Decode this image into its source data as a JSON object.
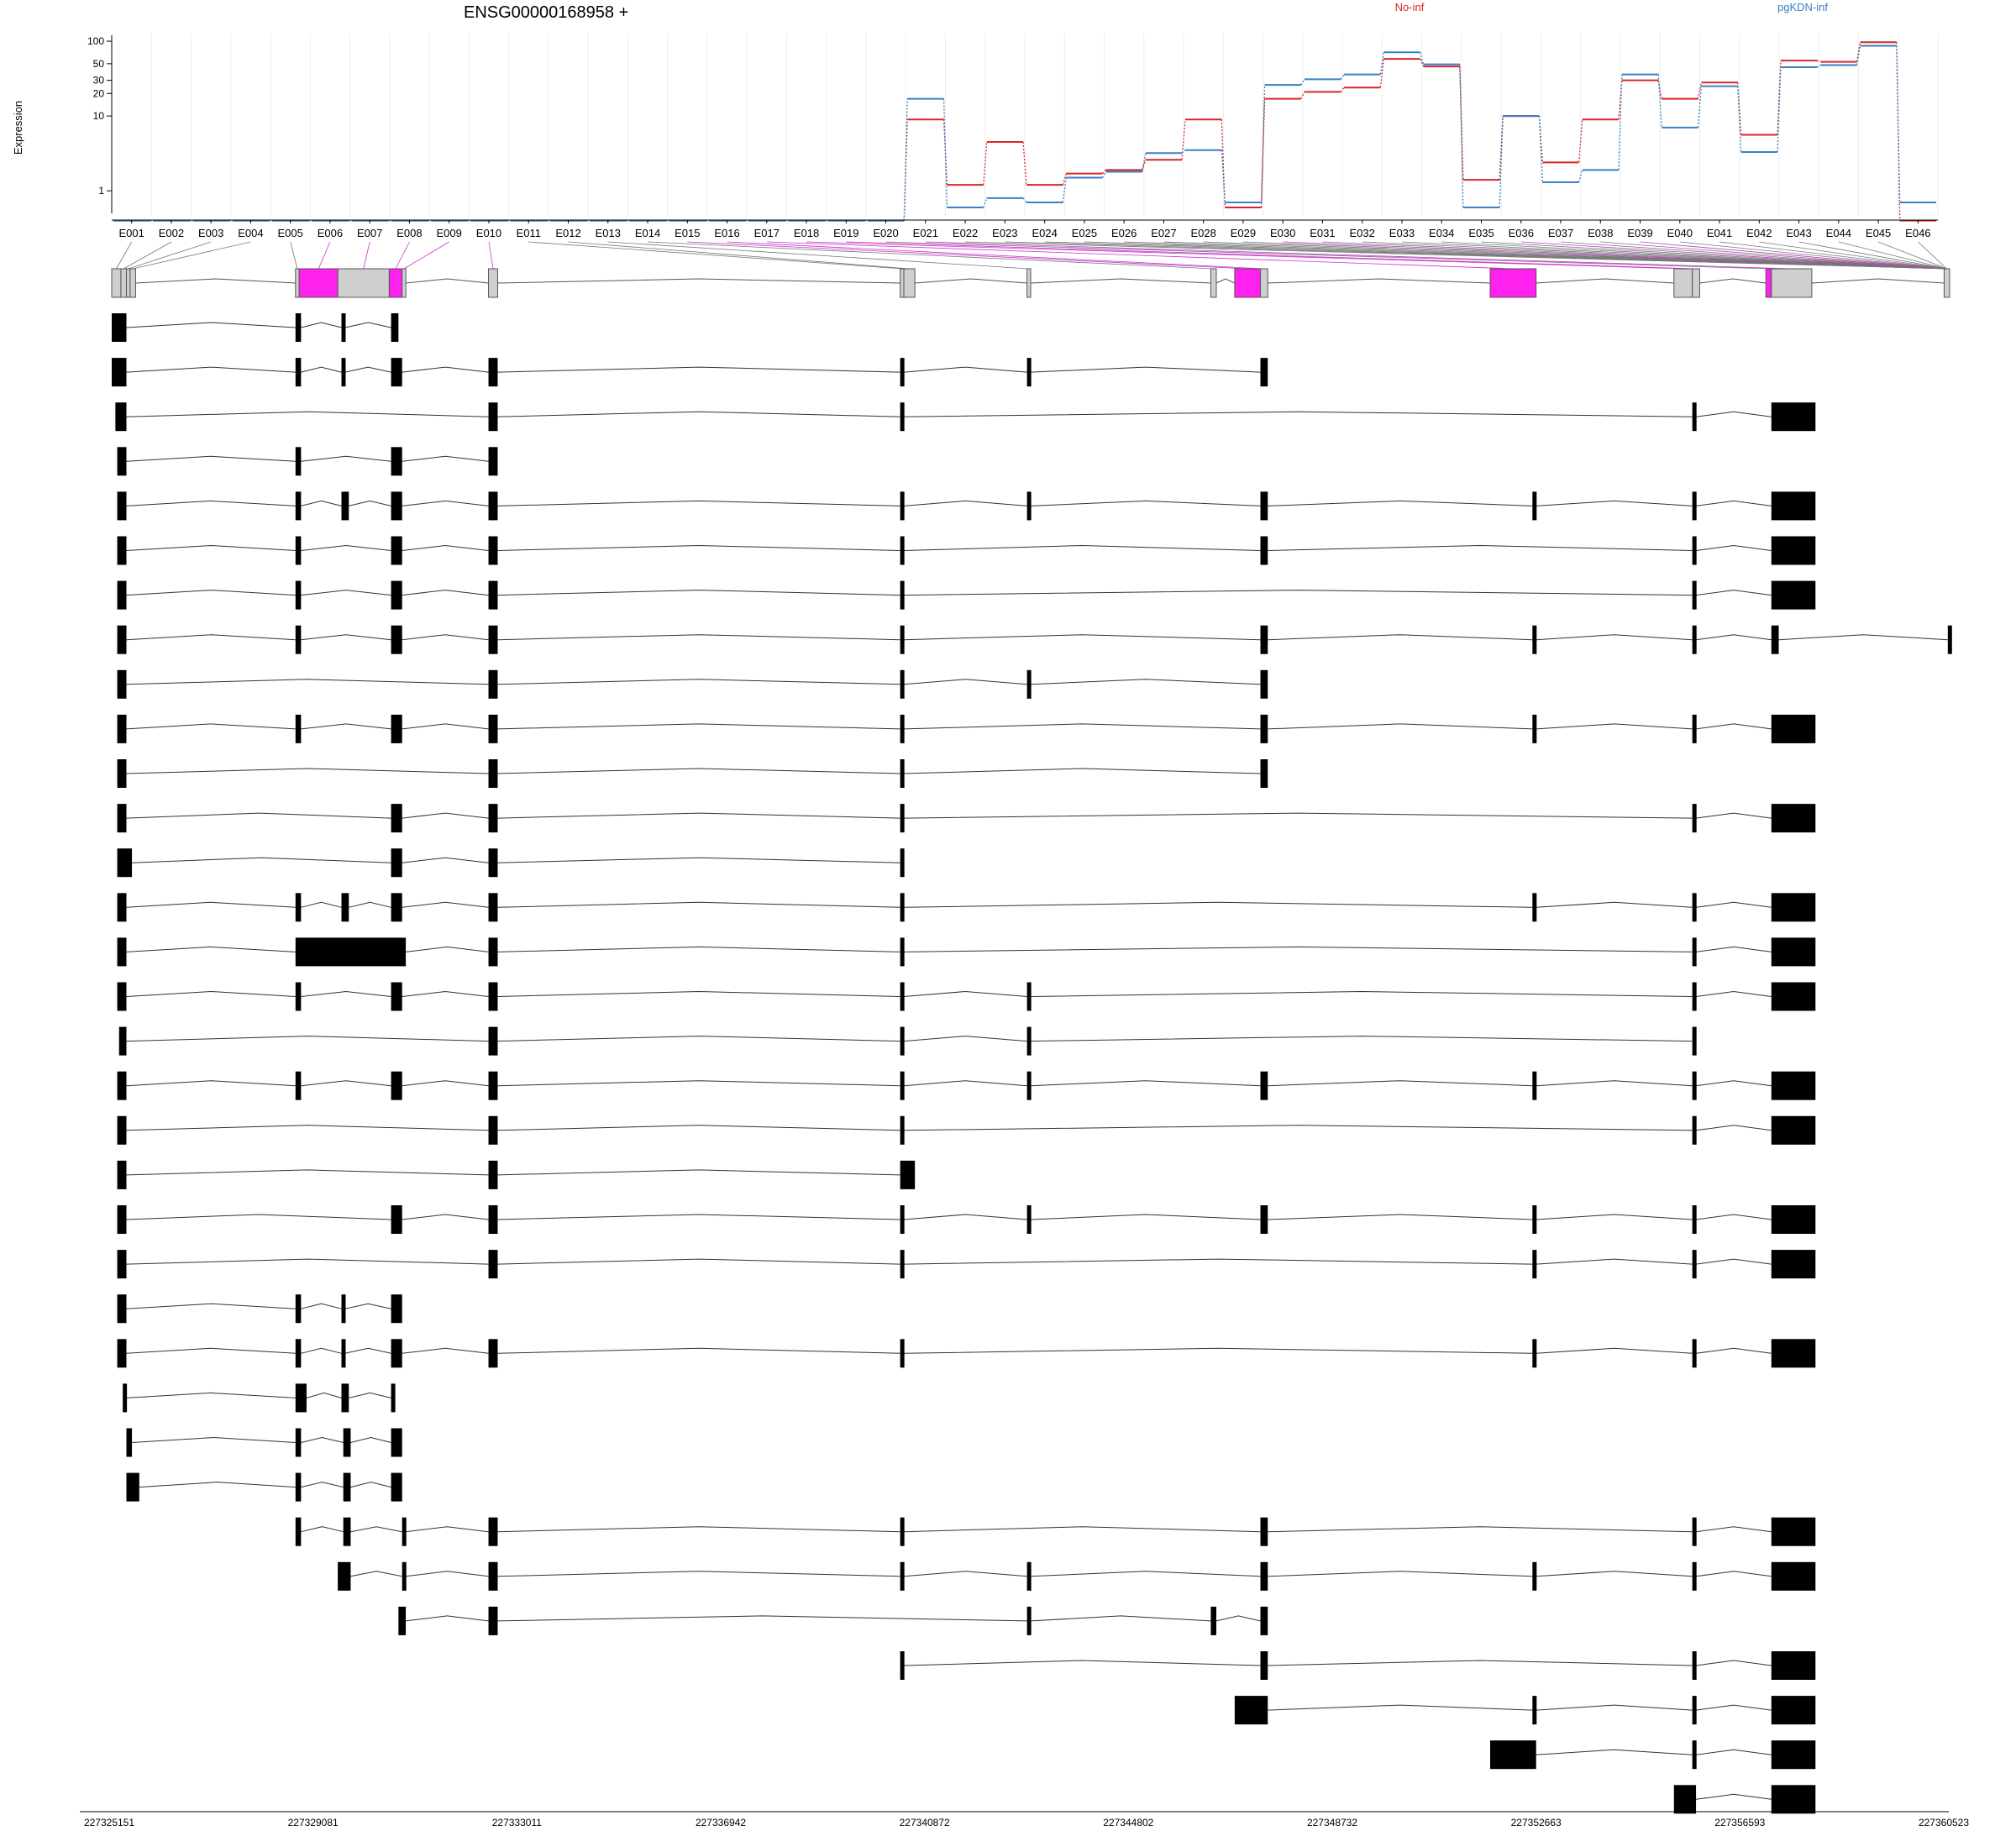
{
  "chart_data": {
    "type": "line",
    "title": "ENSG00000168958 +",
    "ylabel": "Expression",
    "yscale": "log",
    "ylim": [
      0.5,
      120
    ],
    "yticks": [
      1,
      10,
      20,
      30,
      50,
      100
    ],
    "ytick_labels": [
      "1",
      "10",
      "20",
      "30",
      "50",
      "100"
    ],
    "categories": [
      "E001",
      "E002",
      "E003",
      "E004",
      "E005",
      "E006",
      "E007",
      "E008",
      "E009",
      "E010",
      "E011",
      "E012",
      "E013",
      "E014",
      "E015",
      "E016",
      "E017",
      "E018",
      "E019",
      "E020",
      "E021",
      "E022",
      "E023",
      "E024",
      "E025",
      "E026",
      "E027",
      "E028",
      "E029",
      "E030",
      "E031",
      "E032",
      "E033",
      "E034",
      "E035",
      "E036",
      "E037",
      "E038",
      "E039",
      "E040",
      "E041",
      "E042",
      "E043",
      "E044",
      "E045",
      "E046"
    ],
    "series": [
      {
        "name": "No-inf",
        "color": "#d62728",
        "values": [
          0.4,
          0.4,
          0.4,
          0.4,
          0.4,
          0.4,
          0.4,
          0.4,
          0.4,
          0.4,
          0.4,
          0.4,
          0.4,
          0.4,
          0.4,
          0.4,
          0.4,
          0.4,
          0.4,
          0.4,
          9,
          1.2,
          4.5,
          1.2,
          1.7,
          1.9,
          2.6,
          9,
          0.6,
          17,
          21,
          24,
          58,
          46,
          1.4,
          10,
          2.4,
          9,
          30,
          17,
          28,
          5.6,
          55,
          53,
          97,
          0.4
        ]
      },
      {
        "name": "pgKDN-inf",
        "color": "#3b7fc4",
        "values": [
          0.4,
          0.4,
          0.4,
          0.4,
          0.4,
          0.4,
          0.4,
          0.4,
          0.4,
          0.4,
          0.4,
          0.4,
          0.4,
          0.4,
          0.4,
          0.4,
          0.4,
          0.4,
          0.4,
          0.4,
          17,
          0.6,
          0.8,
          0.7,
          1.5,
          1.8,
          3.2,
          3.5,
          0.7,
          26,
          31,
          36,
          71,
          49,
          0.6,
          10,
          1.3,
          1.9,
          36,
          7,
          25,
          3.3,
          45,
          48,
          87,
          0.7
        ]
      }
    ],
    "highlighted_exons": [
      "E006",
      "E008",
      "E020",
      "E029",
      "E036"
    ],
    "gene_model": {
      "exon_spans": [
        [
          0,
          0.5
        ],
        [
          0.5,
          0.8
        ],
        [
          0.8,
          1.0
        ],
        [
          1.0,
          1.3
        ],
        [
          10.0,
          10.2
        ],
        [
          10.2,
          12.3
        ],
        [
          12.3,
          15.1
        ],
        [
          15.1,
          15.8
        ],
        [
          15.8,
          16.0
        ],
        [
          20.5,
          21.0
        ],
        [
          42.9,
          43.1
        ],
        [
          43.1,
          43.7
        ],
        [
          49.8,
          50.0
        ],
        [
          59.8,
          60.1
        ],
        [
          61.1,
          62.5
        ],
        [
          62.5,
          62.9
        ],
        [
          75.0,
          77.5
        ],
        [
          85.0,
          86.0
        ],
        [
          86.0,
          86.4
        ],
        [
          90.0,
          90.3
        ],
        [
          90.3,
          92.5
        ],
        [
          99.7,
          100
        ]
      ],
      "transcripts": [
        [
          [
            0,
            0.8
          ],
          [
            10,
            10.3
          ],
          [
            12.5,
            12.7
          ],
          [
            15.2,
            15.6
          ]
        ],
        [
          [
            0,
            0.8
          ],
          [
            10,
            10.3
          ],
          [
            12.5,
            12.7
          ],
          [
            15.2,
            15.8
          ],
          [
            20.5,
            21
          ],
          [
            42.9,
            43.1
          ],
          [
            49.8,
            50
          ],
          [
            62.5,
            62.9
          ]
        ],
        [
          [
            0.2,
            0.8
          ],
          [
            20.5,
            21
          ],
          [
            42.9,
            43.1
          ],
          [
            86,
            86.2
          ],
          [
            90.3,
            92.7
          ]
        ],
        [
          [
            0.3,
            0.8
          ],
          [
            10,
            10.3
          ],
          [
            15.2,
            15.8
          ],
          [
            20.5,
            21
          ]
        ],
        [
          [
            0.3,
            0.8
          ],
          [
            10,
            10.3
          ],
          [
            12.5,
            12.9
          ],
          [
            15.2,
            15.8
          ],
          [
            20.5,
            21
          ],
          [
            42.9,
            43.1
          ],
          [
            49.8,
            50
          ],
          [
            62.5,
            62.9
          ],
          [
            77.3,
            77.5
          ],
          [
            86,
            86.2
          ],
          [
            90.3,
            92.7
          ]
        ],
        [
          [
            0.3,
            0.8
          ],
          [
            10,
            10.3
          ],
          [
            15.2,
            15.8
          ],
          [
            20.5,
            21
          ],
          [
            42.9,
            43.1
          ],
          [
            62.5,
            62.9
          ],
          [
            86,
            86.2
          ],
          [
            90.3,
            92.7
          ]
        ],
        [
          [
            0.3,
            0.8
          ],
          [
            10,
            10.3
          ],
          [
            15.2,
            15.8
          ],
          [
            20.5,
            21
          ],
          [
            42.9,
            43.1
          ],
          [
            86,
            86.2
          ],
          [
            90.3,
            92.7
          ]
        ],
        [
          [
            0.3,
            0.8
          ],
          [
            10,
            10.3
          ],
          [
            15.2,
            15.8
          ],
          [
            20.5,
            21
          ],
          [
            42.9,
            43.1
          ],
          [
            62.5,
            62.9
          ],
          [
            77.3,
            77.5
          ],
          [
            86,
            86.2
          ],
          [
            90.3,
            90.7
          ],
          [
            99.9,
            100
          ]
        ],
        [
          [
            0.3,
            0.8
          ],
          [
            20.5,
            21
          ],
          [
            42.9,
            43.1
          ],
          [
            49.8,
            50
          ],
          [
            62.5,
            62.9
          ]
        ],
        [
          [
            0.3,
            0.8
          ],
          [
            10,
            10.3
          ],
          [
            15.2,
            15.8
          ],
          [
            20.5,
            21
          ],
          [
            42.9,
            43.1
          ],
          [
            62.5,
            62.9
          ],
          [
            77.3,
            77.5
          ],
          [
            86,
            86.2
          ],
          [
            90.3,
            92.7
          ]
        ],
        [
          [
            0.3,
            0.8
          ],
          [
            20.5,
            21
          ],
          [
            42.9,
            43.1
          ],
          [
            62.5,
            62.9
          ]
        ],
        [
          [
            0.3,
            0.8
          ],
          [
            15.2,
            15.8
          ],
          [
            20.5,
            21
          ],
          [
            42.9,
            43.1
          ],
          [
            86,
            86.2
          ],
          [
            90.3,
            92.7
          ]
        ],
        [
          [
            0.3,
            1.1
          ],
          [
            15.2,
            15.8
          ],
          [
            20.5,
            21
          ],
          [
            42.9,
            43.1
          ]
        ],
        [
          [
            0.3,
            0.8
          ],
          [
            10,
            10.3
          ],
          [
            12.5,
            12.9
          ],
          [
            15.2,
            15.8
          ],
          [
            20.5,
            21
          ],
          [
            42.9,
            43.1
          ],
          [
            77.3,
            77.5
          ],
          [
            86,
            86.2
          ],
          [
            90.3,
            92.7
          ]
        ],
        [
          [
            0.3,
            0.8
          ],
          [
            10,
            16
          ],
          [
            20.5,
            21
          ],
          [
            42.9,
            43.1
          ],
          [
            86,
            86.2
          ],
          [
            90.3,
            92.7
          ]
        ],
        [
          [
            0.3,
            0.8
          ],
          [
            10,
            10.3
          ],
          [
            15.2,
            15.8
          ],
          [
            20.5,
            21
          ],
          [
            42.9,
            43.1
          ],
          [
            49.8,
            50
          ],
          [
            86,
            86.2
          ],
          [
            90.3,
            92.7
          ]
        ],
        [
          [
            0.4,
            0.8
          ],
          [
            20.5,
            21
          ],
          [
            42.9,
            43.1
          ],
          [
            49.8,
            50
          ],
          [
            86,
            86.2
          ]
        ],
        [
          [
            0.3,
            0.8
          ],
          [
            10,
            10.3
          ],
          [
            15.2,
            15.8
          ],
          [
            20.5,
            21
          ],
          [
            42.9,
            43.1
          ],
          [
            49.8,
            50
          ],
          [
            62.5,
            62.9
          ],
          [
            77.3,
            77.5
          ],
          [
            86,
            86.2
          ],
          [
            90.3,
            92.7
          ]
        ],
        [
          [
            0.3,
            0.8
          ],
          [
            20.5,
            21
          ],
          [
            42.9,
            43.1
          ],
          [
            86,
            86.2
          ],
          [
            90.3,
            92.7
          ]
        ],
        [
          [
            0.3,
            0.8
          ],
          [
            20.5,
            21
          ],
          [
            42.9,
            43.7
          ]
        ],
        [
          [
            0.3,
            0.8
          ],
          [
            15.2,
            15.8
          ],
          [
            20.5,
            21
          ],
          [
            42.9,
            43.1
          ],
          [
            49.8,
            50
          ],
          [
            62.5,
            62.9
          ],
          [
            77.3,
            77.5
          ],
          [
            86,
            86.2
          ],
          [
            90.3,
            92.7
          ]
        ],
        [
          [
            0.3,
            0.8
          ],
          [
            20.5,
            21
          ],
          [
            42.9,
            43.1
          ],
          [
            77.3,
            77.5
          ],
          [
            86,
            86.2
          ],
          [
            90.3,
            92.7
          ]
        ],
        [
          [
            0.3,
            0.8
          ],
          [
            10,
            10.3
          ],
          [
            12.5,
            12.7
          ],
          [
            15.2,
            15.8
          ]
        ],
        [
          [
            0.3,
            0.8
          ],
          [
            10,
            10.3
          ],
          [
            12.5,
            12.7
          ],
          [
            15.2,
            15.8
          ],
          [
            20.5,
            21
          ],
          [
            42.9,
            43.1
          ],
          [
            77.3,
            77.5
          ],
          [
            86,
            86.2
          ],
          [
            90.3,
            92.7
          ]
        ],
        [
          [
            0.6,
            0.8
          ],
          [
            10,
            10.6
          ],
          [
            12.5,
            12.9
          ],
          [
            15.2,
            15.4
          ]
        ],
        [
          [
            0.8,
            1.1
          ],
          [
            10,
            10.3
          ],
          [
            12.6,
            13.0
          ],
          [
            15.2,
            15.8
          ]
        ],
        [
          [
            0.8,
            1.5
          ],
          [
            10,
            10.3
          ],
          [
            12.6,
            13.0
          ],
          [
            15.2,
            15.8
          ]
        ],
        [
          [
            10,
            10.3
          ],
          [
            12.6,
            13.0
          ],
          [
            15.8,
            16.0
          ],
          [
            20.5,
            21
          ],
          [
            42.9,
            43.1
          ],
          [
            62.5,
            62.9
          ],
          [
            86,
            86.2
          ],
          [
            90.3,
            92.7
          ]
        ],
        [
          [
            12.3,
            13.0
          ],
          [
            15.8,
            16.0
          ],
          [
            20.5,
            21
          ],
          [
            42.9,
            43.1
          ],
          [
            49.8,
            50
          ],
          [
            62.5,
            62.9
          ],
          [
            77.3,
            77.5
          ],
          [
            86,
            86.2
          ],
          [
            90.3,
            92.7
          ]
        ],
        [
          [
            15.6,
            16.0
          ],
          [
            20.5,
            21
          ],
          [
            49.8,
            50
          ],
          [
            59.8,
            60.1
          ],
          [
            62.5,
            62.9
          ]
        ],
        [
          [
            42.9,
            43.1
          ],
          [
            62.5,
            62.9
          ],
          [
            86,
            86.2
          ],
          [
            90.3,
            92.7
          ]
        ],
        [
          [
            61.1,
            62.9
          ],
          [
            77.3,
            77.5
          ],
          [
            86,
            86.2
          ],
          [
            90.3,
            92.7
          ]
        ],
        [
          [
            75.0,
            77.5
          ],
          [
            86,
            86.2
          ],
          [
            90.3,
            92.7
          ]
        ],
        [
          [
            85.0,
            86.2
          ],
          [
            90.3,
            92.7
          ]
        ]
      ]
    },
    "genomic_coordinates": [
      "227325151",
      "227329081",
      "227333011",
      "227336942",
      "227340872",
      "227344802",
      "227348732",
      "227352663",
      "227356593",
      "227360523"
    ]
  }
}
